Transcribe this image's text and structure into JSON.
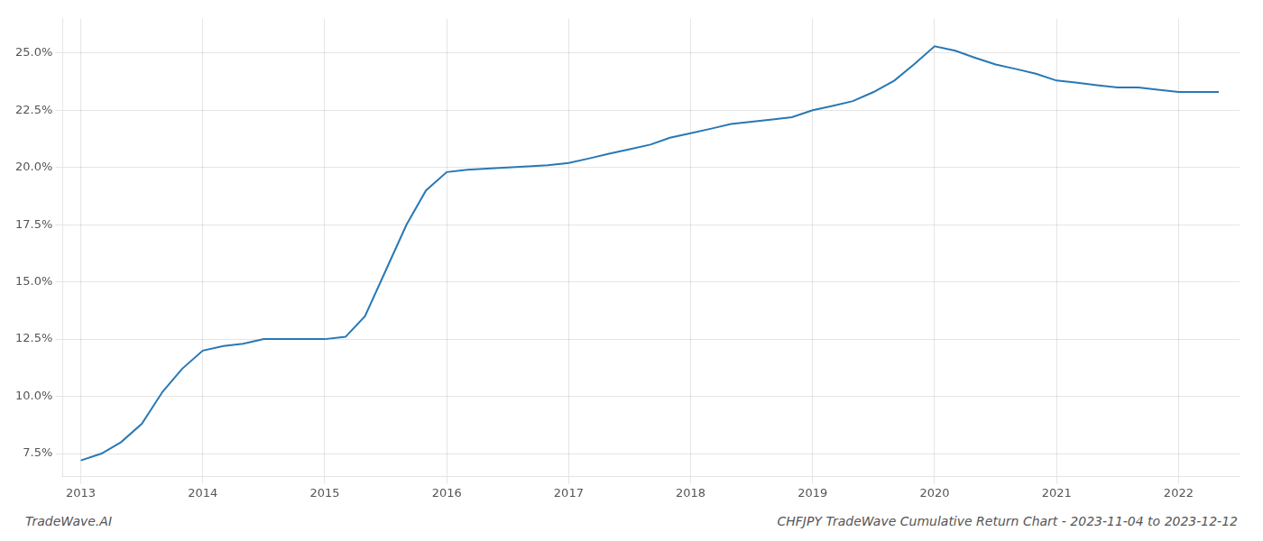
{
  "chart_data": {
    "type": "line",
    "title": "CHFJPY TradeWave Cumulative Return Chart - 2023-11-04 to 2023-12-12",
    "annotations": [
      "TradeWave.AI"
    ],
    "x": [
      2013.0,
      2013.17,
      2013.33,
      2013.5,
      2013.67,
      2013.83,
      2014.0,
      2014.17,
      2014.33,
      2014.5,
      2014.67,
      2014.83,
      2015.0,
      2015.17,
      2015.33,
      2015.5,
      2015.67,
      2015.83,
      2016.0,
      2016.17,
      2016.33,
      2016.5,
      2016.67,
      2016.83,
      2017.0,
      2017.17,
      2017.33,
      2017.5,
      2017.67,
      2017.83,
      2018.0,
      2018.17,
      2018.33,
      2018.5,
      2018.67,
      2018.83,
      2019.0,
      2019.17,
      2019.33,
      2019.5,
      2019.67,
      2019.83,
      2020.0,
      2020.17,
      2020.33,
      2020.5,
      2020.67,
      2020.83,
      2021.0,
      2021.17,
      2021.33,
      2021.5,
      2021.67,
      2021.83,
      2022.0,
      2022.17,
      2022.33
    ],
    "values": [
      7.2,
      7.5,
      8.0,
      8.8,
      10.2,
      11.2,
      12.0,
      12.2,
      12.3,
      12.5,
      12.5,
      12.5,
      12.5,
      12.6,
      13.5,
      15.5,
      17.5,
      19.0,
      19.8,
      19.9,
      19.95,
      20.0,
      20.05,
      20.1,
      20.2,
      20.4,
      20.6,
      20.8,
      21.0,
      21.3,
      21.5,
      21.7,
      21.9,
      22.0,
      22.1,
      22.2,
      22.5,
      22.7,
      22.9,
      23.3,
      23.8,
      24.5,
      25.3,
      25.1,
      24.8,
      24.5,
      24.3,
      24.1,
      23.8,
      23.7,
      23.6,
      23.5,
      23.5,
      23.4,
      23.3,
      23.3,
      23.3
    ],
    "color": "#2878b5",
    "xlim": [
      2012.85,
      2022.5
    ],
    "xticks": [
      2013,
      2014,
      2015,
      2016,
      2017,
      2018,
      2019,
      2020,
      2021,
      2022
    ],
    "ylim": [
      6.5,
      26.5
    ],
    "yticks": [
      {
        "value": 7.5,
        "label": "7.5%"
      },
      {
        "value": 10.0,
        "label": "10.0%"
      },
      {
        "value": 12.5,
        "label": "12.5%"
      },
      {
        "value": 15.0,
        "label": "15.0%"
      },
      {
        "value": 17.5,
        "label": "17.5%"
      },
      {
        "value": 20.0,
        "label": "20.0%"
      },
      {
        "value": 22.5,
        "label": "22.5%"
      },
      {
        "value": 25.0,
        "label": "25.0%"
      }
    ],
    "grid": true
  }
}
